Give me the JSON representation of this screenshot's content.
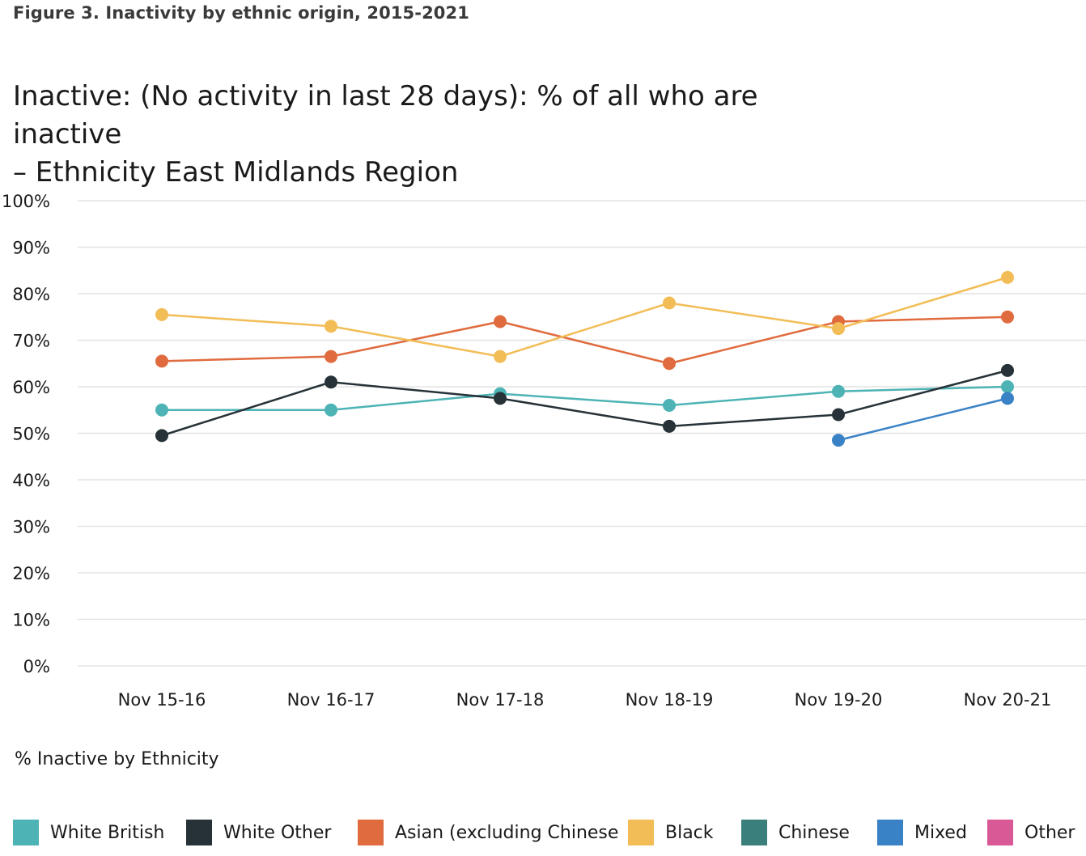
{
  "figure_caption": "Figure 3. Inactivity by ethnic origin, 2015-2021",
  "chart_data": {
    "type": "line",
    "title_lines": [
      "Inactive: (No activity in last 28 days): % of all who are inactive",
      "– Ethnicity East Midlands Region"
    ],
    "categories": [
      "Nov 15-16",
      "Nov 16-17",
      "Nov 17-18",
      "Nov 18-19",
      "Nov 19-20",
      "Nov 20-21"
    ],
    "y_ticks": [
      "0%",
      "10%",
      "20%",
      "30%",
      "40%",
      "50%",
      "60%",
      "70%",
      "80%",
      "90%",
      "100%"
    ],
    "ylim": [
      0,
      100
    ],
    "grid": true,
    "legend_title": "% Inactive by Ethnicity",
    "legend_position": "bottom",
    "series": [
      {
        "name": "White British",
        "color": "#4db3b5",
        "values": [
          55,
          55,
          58.5,
          56,
          59,
          60
        ]
      },
      {
        "name": "White Other",
        "color": "#263238",
        "values": [
          49.5,
          61,
          57.5,
          51.5,
          54,
          63.5
        ]
      },
      {
        "name": "Asian (excluding Chinese",
        "color": "#e06b3e",
        "values": [
          65.5,
          66.5,
          74,
          65,
          74,
          75
        ]
      },
      {
        "name": "Black",
        "color": "#f2bd56",
        "values": [
          75.5,
          73,
          66.5,
          78,
          72.5,
          83.5
        ]
      },
      {
        "name": "Chinese",
        "color": "#3b7f7d",
        "values": [
          null,
          null,
          null,
          null,
          null,
          null
        ]
      },
      {
        "name": "Mixed",
        "color": "#3a82c6",
        "values": [
          null,
          null,
          null,
          null,
          48.5,
          57.5
        ]
      },
      {
        "name": "Other",
        "color": "#d95896",
        "values": [
          null,
          null,
          null,
          null,
          null,
          null
        ]
      }
    ]
  }
}
